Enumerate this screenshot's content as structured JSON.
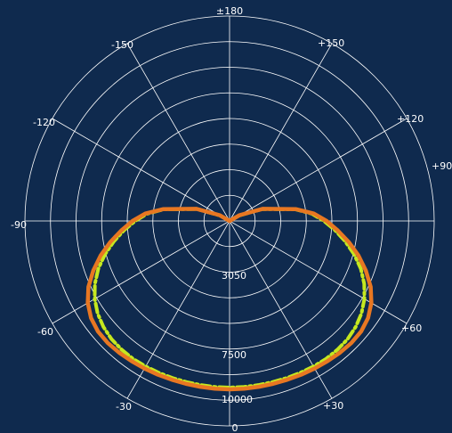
{
  "chart_data": {
    "type": "polar-line",
    "angle_labels": [
      "±180",
      "+150",
      "+120",
      "+90",
      "+60",
      "+30",
      "0",
      "-30",
      "-60",
      "-90",
      "-120",
      "-150"
    ],
    "radial_tick_labels": [
      "3050",
      "7500",
      "10000"
    ],
    "radial_ticks": [
      3050,
      7500,
      10000
    ],
    "r_max": 11500,
    "grid": true,
    "series": [
      {
        "color": "#e87722",
        "style": "solid",
        "points": [
          [
            -180,
            0
          ],
          [
            -150,
            0
          ],
          [
            -135,
            0
          ],
          [
            -120,
            650
          ],
          [
            -110,
            2000
          ],
          [
            -100,
            3800
          ],
          [
            -95,
            4750
          ],
          [
            -90,
            5450
          ],
          [
            -85,
            6100
          ],
          [
            -80,
            6800
          ],
          [
            -75,
            7500
          ],
          [
            -70,
            8150
          ],
          [
            -65,
            8750
          ],
          [
            -60,
            9200
          ],
          [
            -55,
            9500
          ],
          [
            -50,
            9650
          ],
          [
            -45,
            9680
          ],
          [
            -40,
            9650
          ],
          [
            -35,
            9600
          ],
          [
            -30,
            9560
          ],
          [
            -25,
            9520
          ],
          [
            -20,
            9480
          ],
          [
            -15,
            9460
          ],
          [
            -10,
            9450
          ],
          [
            -5,
            9450
          ],
          [
            0,
            9450
          ],
          [
            5,
            9450
          ],
          [
            10,
            9450
          ],
          [
            15,
            9460
          ],
          [
            20,
            9480
          ],
          [
            25,
            9520
          ],
          [
            30,
            9560
          ],
          [
            35,
            9600
          ],
          [
            40,
            9650
          ],
          [
            45,
            9680
          ],
          [
            50,
            9650
          ],
          [
            55,
            9500
          ],
          [
            60,
            9200
          ],
          [
            65,
            8750
          ],
          [
            70,
            8150
          ],
          [
            75,
            7500
          ],
          [
            80,
            6800
          ],
          [
            85,
            6100
          ],
          [
            90,
            5450
          ],
          [
            95,
            4750
          ],
          [
            100,
            3800
          ],
          [
            110,
            2000
          ],
          [
            120,
            650
          ],
          [
            135,
            0
          ],
          [
            150,
            0
          ],
          [
            180,
            0
          ]
        ]
      },
      {
        "color": "#c6e81f",
        "style": "dashed",
        "points": [
          [
            -180,
            0
          ],
          [
            -150,
            0
          ],
          [
            -135,
            0
          ],
          [
            -120,
            600
          ],
          [
            -110,
            1950
          ],
          [
            -100,
            3750
          ],
          [
            -95,
            4650
          ],
          [
            -90,
            5300
          ],
          [
            -85,
            5950
          ],
          [
            -80,
            6600
          ],
          [
            -75,
            7250
          ],
          [
            -70,
            7850
          ],
          [
            -65,
            8350
          ],
          [
            -60,
            8750
          ],
          [
            -55,
            9050
          ],
          [
            -50,
            9250
          ],
          [
            -45,
            9380
          ],
          [
            -40,
            9430
          ],
          [
            -35,
            9450
          ],
          [
            -30,
            9430
          ],
          [
            -25,
            9400
          ],
          [
            -20,
            9380
          ],
          [
            -15,
            9360
          ],
          [
            -10,
            9350
          ],
          [
            -5,
            9350
          ],
          [
            0,
            9350
          ],
          [
            5,
            9350
          ],
          [
            10,
            9350
          ],
          [
            15,
            9360
          ],
          [
            20,
            9380
          ],
          [
            25,
            9400
          ],
          [
            30,
            9430
          ],
          [
            35,
            9450
          ],
          [
            40,
            9430
          ],
          [
            45,
            9380
          ],
          [
            50,
            9250
          ],
          [
            55,
            9050
          ],
          [
            60,
            8750
          ],
          [
            65,
            8350
          ],
          [
            70,
            7850
          ],
          [
            75,
            7250
          ],
          [
            80,
            6600
          ],
          [
            85,
            5950
          ],
          [
            90,
            5300
          ],
          [
            95,
            4650
          ],
          [
            100,
            3750
          ],
          [
            110,
            1950
          ],
          [
            120,
            600
          ],
          [
            135,
            0
          ],
          [
            150,
            0
          ],
          [
            180,
            0
          ]
        ]
      }
    ]
  },
  "colors": {
    "background": "#0f2a4e",
    "grid": "#ffffff",
    "label": "#ffffff"
  }
}
